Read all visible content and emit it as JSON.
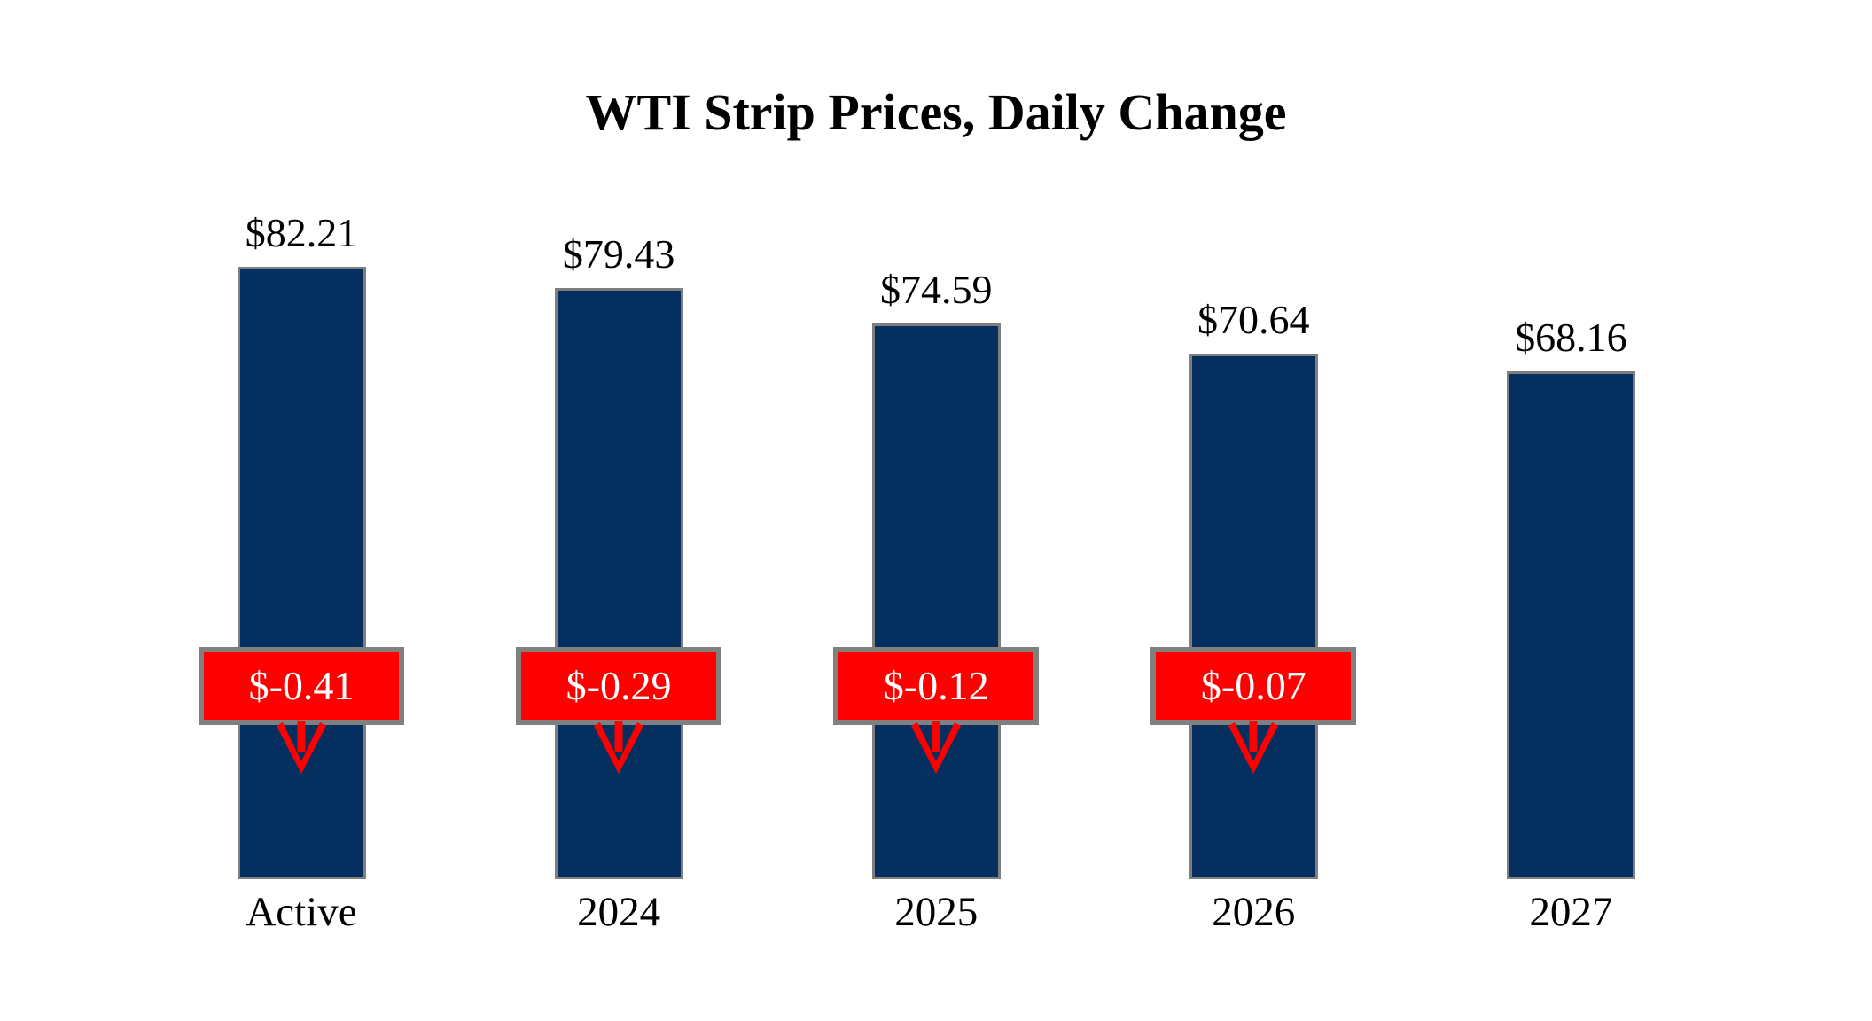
{
  "chart_data": {
    "type": "bar",
    "title": "WTI Strip Prices, Daily Change",
    "categories": [
      "Active",
      "2024",
      "2025",
      "2026",
      "2027"
    ],
    "values": [
      82.21,
      79.43,
      74.59,
      70.64,
      68.16
    ],
    "value_labels": [
      "$82.21",
      "$79.43",
      "$74.59",
      "$70.64",
      "$68.16"
    ],
    "daily_changes": [
      -0.41,
      -0.29,
      -0.12,
      -0.07,
      null
    ],
    "change_labels": [
      "$-0.41",
      "$-0.29",
      "$-0.12",
      "$-0.07",
      null
    ],
    "xlabel": "",
    "ylabel": "",
    "ylim": [
      0,
      85
    ],
    "grid": false,
    "legend": false,
    "colors": {
      "bar_fill": "#052F5E",
      "bar_border": "#7F7F7F",
      "change_box_fill": "#FF0000",
      "change_box_border": "#808080",
      "change_text": "#FFFFFF",
      "arrow": "#FF0000",
      "title_text": "#000000",
      "label_text": "#000000",
      "background": "#FFFFFF"
    }
  }
}
